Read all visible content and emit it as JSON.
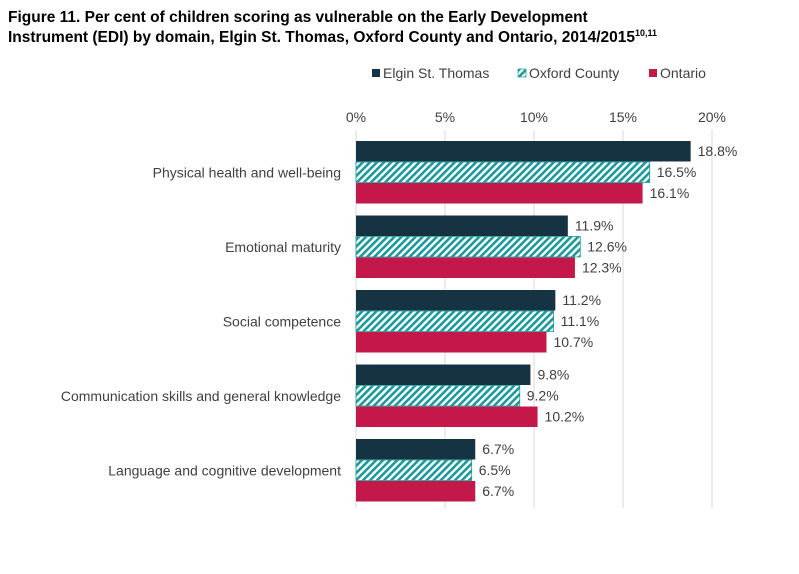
{
  "title": {
    "line1": "Figure 11. Per cent of children scoring as vulnerable on the Early Development",
    "line2": "Instrument (EDI) by domain, Elgin St. Thomas, Oxford County and Ontario, 2014/2015",
    "superscript": "10,11"
  },
  "colors": {
    "elgin": "#163344",
    "oxford_fill": "#1a9a9c",
    "oxford_bg": "#ffffff",
    "ontario": "#c4184a",
    "gridline": "#d9d9d9",
    "text": "#404040"
  },
  "chart_data": {
    "type": "bar",
    "orientation": "horizontal",
    "categories": [
      "Physical health and well-being",
      "Emotional maturity",
      "Social competence",
      "Communication skills and general knowledge",
      "Language and cognitive development"
    ],
    "series": [
      {
        "name": "Elgin St. Thomas",
        "values": [
          18.8,
          11.9,
          11.2,
          9.8,
          6.7
        ],
        "labels": [
          "18.8%",
          "11.9%",
          "11.2%",
          "9.8%",
          "6.7%"
        ]
      },
      {
        "name": "Oxford County",
        "values": [
          16.5,
          12.6,
          11.1,
          9.2,
          6.5
        ],
        "labels": [
          "16.5%",
          "12.6%",
          "11.1%",
          "9.2%",
          "6.5%"
        ]
      },
      {
        "name": "Ontario",
        "values": [
          16.1,
          12.3,
          10.7,
          10.2,
          6.7
        ],
        "labels": [
          "16.1%",
          "12.3%",
          "10.7%",
          "10.2%",
          "6.7%"
        ]
      }
    ],
    "xlim": [
      0,
      20
    ],
    "xticks": [
      0,
      5,
      10,
      15,
      20
    ],
    "xtick_labels": [
      "0%",
      "5%",
      "10%",
      "15%",
      "20%"
    ],
    "axis_position": "top",
    "grid": true,
    "legend_position": "top"
  }
}
